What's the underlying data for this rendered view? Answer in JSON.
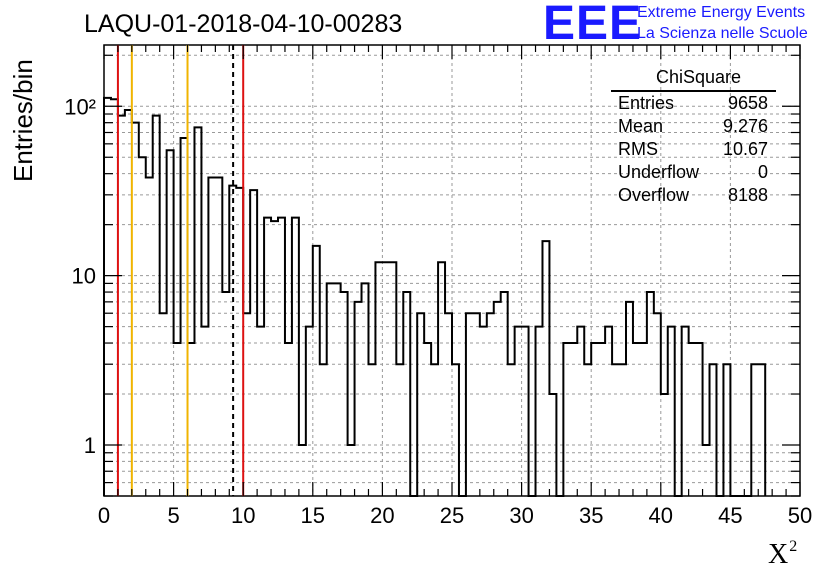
{
  "header": {
    "title": "LAQU-01-2018-04-10-00283"
  },
  "logo": {
    "mark": "EEE",
    "line1": "Extreme Energy Events",
    "line2": "La Scienza nelle Scuole",
    "color": "#1a1aff"
  },
  "statbox": {
    "title": "ChiSquare",
    "rows": [
      {
        "key": "Entries",
        "value": "9658"
      },
      {
        "key": "Mean",
        "value": "9.276"
      },
      {
        "key": "RMS",
        "value": "10.67"
      },
      {
        "key": "Underflow",
        "value": "0"
      },
      {
        "key": "Overflow",
        "value": "8188"
      }
    ]
  },
  "chart_data": {
    "type": "histogram",
    "title": "LAQU-01-2018-04-10-00283",
    "xlabel": "X²",
    "xlabel_base": "X",
    "xlabel_sup": "2",
    "ylabel": "Entries/bin",
    "x_range": [
      0,
      50
    ],
    "y_range": [
      0.5,
      230
    ],
    "y_scale": "log",
    "grid": true,
    "x_ticks": [
      "0",
      "5",
      "10",
      "15",
      "20",
      "25",
      "30",
      "35",
      "40",
      "45",
      "50"
    ],
    "y_ticks": [
      {
        "value": 1,
        "label": "1"
      },
      {
        "value": 10,
        "label": "10"
      },
      {
        "value": 100,
        "label": "10²"
      }
    ],
    "bin_width": 0.5,
    "bin_start": 0,
    "counts": [
      112,
      110,
      88,
      95,
      80,
      50,
      38,
      88,
      6,
      55,
      4,
      65,
      4,
      75,
      5,
      38,
      38,
      8,
      34,
      33,
      6,
      32,
      5,
      22,
      21,
      22,
      4,
      22,
      1,
      5,
      15,
      3,
      9,
      9,
      8,
      1,
      7,
      9,
      3,
      12,
      12,
      12,
      3,
      8,
      0,
      6,
      4,
      3,
      12,
      6,
      3,
      0,
      6,
      6,
      5,
      6,
      7,
      8,
      3,
      5,
      5,
      0,
      5,
      16,
      2,
      0,
      4,
      4,
      5,
      3,
      4,
      4,
      5,
      3,
      3,
      7,
      4,
      4,
      8,
      6,
      2,
      5,
      0,
      5,
      4,
      4,
      1,
      3,
      0,
      3,
      0,
      0,
      0,
      3,
      3
    ],
    "vertical_lines": [
      {
        "x": 1.0,
        "color": "#dd1111",
        "style": "solid"
      },
      {
        "x": 2.0,
        "color": "#f0b400",
        "style": "solid"
      },
      {
        "x": 6.0,
        "color": "#f0b400",
        "style": "solid"
      },
      {
        "x": 9.276,
        "color": "#000000",
        "style": "dashed"
      },
      {
        "x": 10.0,
        "color": "#dd1111",
        "style": "solid"
      }
    ]
  }
}
